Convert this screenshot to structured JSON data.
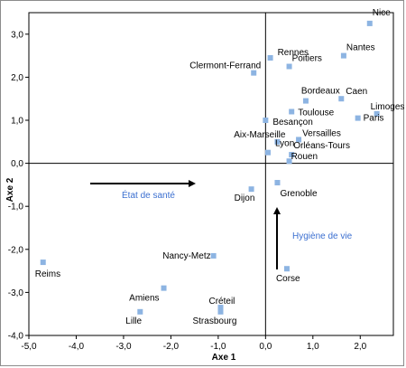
{
  "chart_data": {
    "type": "scatter",
    "title": "",
    "xlabel": "Axe 1",
    "ylabel": "Axe 2",
    "xlim": [
      -5.0,
      2.7
    ],
    "ylim": [
      -4.0,
      3.5
    ],
    "x_ticks": [
      -5.0,
      -4.0,
      -3.0,
      -2.0,
      -1.0,
      0.0,
      1.0,
      2.0
    ],
    "x_tick_labels": [
      "-5,0",
      "-4,0",
      "-3,0",
      "-2,0",
      "-1,0",
      "0,0",
      "1,0",
      "2,0"
    ],
    "y_ticks": [
      -4.0,
      -3.0,
      -2.0,
      -1.0,
      0.0,
      1.0,
      2.0,
      3.0
    ],
    "y_tick_labels": [
      "-4,0",
      "-3,0",
      "-2,0",
      "-1,0",
      "0,0",
      "1,0",
      "2,0",
      "3,0"
    ],
    "grid": false,
    "marker_color": "#8db4e2",
    "points": [
      {
        "label": "Nice",
        "x": 2.2,
        "y": 3.25
      },
      {
        "label": "Rennes",
        "x": 0.1,
        "y": 2.45
      },
      {
        "label": "Poitiers",
        "x": 0.5,
        "y": 2.25
      },
      {
        "label": "Nantes",
        "x": 1.65,
        "y": 2.5
      },
      {
        "label": "Clermont-Ferrand",
        "x": -0.25,
        "y": 2.1
      },
      {
        "label": "Bordeaux",
        "x": 0.85,
        "y": 1.45
      },
      {
        "label": "Caen",
        "x": 1.6,
        "y": 1.5
      },
      {
        "label": "Toulouse",
        "x": 0.55,
        "y": 1.2
      },
      {
        "label": "Limoges",
        "x": 2.35,
        "y": 1.15
      },
      {
        "label": "Paris",
        "x": 1.95,
        "y": 1.05
      },
      {
        "label": "Besançon",
        "x": 0.0,
        "y": 1.0
      },
      {
        "label": "Aix-Marseille",
        "x": 0.25,
        "y": 0.5
      },
      {
        "label": "Versailles",
        "x": 0.7,
        "y": 0.55
      },
      {
        "label": "Lyon",
        "x": 0.05,
        "y": 0.25
      },
      {
        "label": "Orléans-Tours",
        "x": 0.55,
        "y": 0.2
      },
      {
        "label": "Rouen",
        "x": 0.5,
        "y": 0.05
      },
      {
        "label": "Grenoble",
        "x": 0.25,
        "y": -0.45
      },
      {
        "label": "Dijon",
        "x": -0.3,
        "y": -0.6
      },
      {
        "label": "Reims",
        "x": -4.7,
        "y": -2.3
      },
      {
        "label": "Nancy-Metz",
        "x": -1.1,
        "y": -2.15
      },
      {
        "label": "Amiens",
        "x": -2.15,
        "y": -2.9
      },
      {
        "label": "Corse",
        "x": 0.45,
        "y": -2.45
      },
      {
        "label": "Lille",
        "x": -2.65,
        "y": -3.45
      },
      {
        "label": "Créteil",
        "x": -0.95,
        "y": -3.35
      },
      {
        "label": "Strasbourg",
        "x": -0.95,
        "y": -3.45
      }
    ],
    "annotations": [
      {
        "text": "État de santé",
        "color": "#3b6fd0"
      },
      {
        "text": "Hygiène de vie",
        "color": "#3b6fd0"
      }
    ]
  }
}
